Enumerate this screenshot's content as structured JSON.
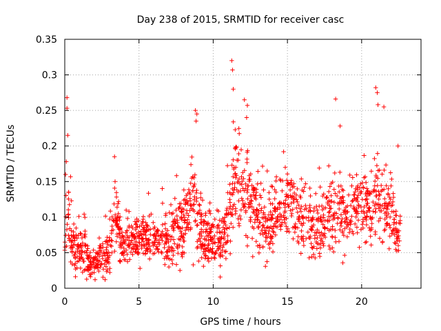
{
  "chart_data": {
    "type": "scatter",
    "title": "Day 238 of 2015, SRMTID for receiver casc",
    "xlabel": "GPS time / hours",
    "ylabel": "SRMTID / TECUs",
    "xlim": [
      0,
      24
    ],
    "ylim": [
      0,
      0.35
    ],
    "xticks": [
      0,
      5,
      10,
      15,
      20
    ],
    "xtick_labels": [
      "0",
      "5",
      "10",
      "15",
      "20"
    ],
    "yticks": [
      0,
      0.05,
      0.1,
      0.15,
      0.2,
      0.25,
      0.3,
      0.35
    ],
    "ytick_labels": [
      "0",
      "0.05",
      "0.1",
      "0.15",
      "0.2",
      "0.25",
      "0.3",
      "0.35"
    ],
    "grid": true,
    "marker": "+",
    "marker_color": "#ff0000",
    "series_name": "SRMTID",
    "envelope": [
      [
        0.0,
        0.06,
        0.025
      ],
      [
        0.2,
        0.1,
        0.05
      ],
      [
        0.5,
        0.06,
        0.02
      ],
      [
        1.0,
        0.045,
        0.015
      ],
      [
        1.3,
        0.07,
        0.04
      ],
      [
        1.6,
        0.035,
        0.012
      ],
      [
        2.0,
        0.035,
        0.012
      ],
      [
        2.5,
        0.045,
        0.015
      ],
      [
        3.0,
        0.05,
        0.02
      ],
      [
        3.4,
        0.11,
        0.03
      ],
      [
        3.8,
        0.06,
        0.02
      ],
      [
        4.3,
        0.065,
        0.02
      ],
      [
        5.0,
        0.07,
        0.02
      ],
      [
        6.0,
        0.07,
        0.02
      ],
      [
        7.0,
        0.065,
        0.02
      ],
      [
        7.5,
        0.08,
        0.03
      ],
      [
        8.0,
        0.09,
        0.03
      ],
      [
        8.6,
        0.13,
        0.04
      ],
      [
        9.0,
        0.09,
        0.03
      ],
      [
        9.5,
        0.07,
        0.025
      ],
      [
        10.0,
        0.07,
        0.025
      ],
      [
        10.5,
        0.07,
        0.025
      ],
      [
        11.0,
        0.1,
        0.035
      ],
      [
        11.5,
        0.15,
        0.05
      ],
      [
        12.0,
        0.14,
        0.05
      ],
      [
        12.4,
        0.13,
        0.04
      ],
      [
        13.0,
        0.1,
        0.03
      ],
      [
        13.5,
        0.085,
        0.025
      ],
      [
        14.0,
        0.1,
        0.03
      ],
      [
        14.5,
        0.12,
        0.03
      ],
      [
        15.0,
        0.12,
        0.03
      ],
      [
        15.5,
        0.115,
        0.03
      ],
      [
        16.0,
        0.105,
        0.03
      ],
      [
        16.5,
        0.09,
        0.025
      ],
      [
        17.0,
        0.085,
        0.025
      ],
      [
        17.6,
        0.095,
        0.03
      ],
      [
        18.2,
        0.11,
        0.035
      ],
      [
        18.8,
        0.1,
        0.03
      ],
      [
        19.4,
        0.11,
        0.03
      ],
      [
        20.0,
        0.12,
        0.03
      ],
      [
        20.5,
        0.1,
        0.03
      ],
      [
        21.0,
        0.14,
        0.05
      ],
      [
        21.5,
        0.11,
        0.035
      ],
      [
        22.0,
        0.1,
        0.03
      ],
      [
        22.5,
        0.07,
        0.025
      ]
    ],
    "outliers": [
      [
        0.15,
        0.268
      ],
      [
        0.15,
        0.253
      ],
      [
        0.2,
        0.215
      ],
      [
        0.1,
        0.178
      ],
      [
        0.05,
        0.16
      ],
      [
        3.35,
        0.185
      ],
      [
        8.8,
        0.25
      ],
      [
        8.9,
        0.245
      ],
      [
        8.85,
        0.235
      ],
      [
        11.25,
        0.32
      ],
      [
        11.3,
        0.307
      ],
      [
        11.35,
        0.28
      ],
      [
        12.1,
        0.265
      ],
      [
        12.3,
        0.257
      ],
      [
        12.25,
        0.24
      ],
      [
        18.25,
        0.266
      ],
      [
        18.55,
        0.228
      ],
      [
        20.95,
        0.282
      ],
      [
        21.05,
        0.275
      ],
      [
        21.1,
        0.258
      ],
      [
        21.5,
        0.255
      ],
      [
        22.45,
        0.2
      ]
    ],
    "time_range": [
      0.0,
      22.6
    ],
    "n_points": 1700
  }
}
